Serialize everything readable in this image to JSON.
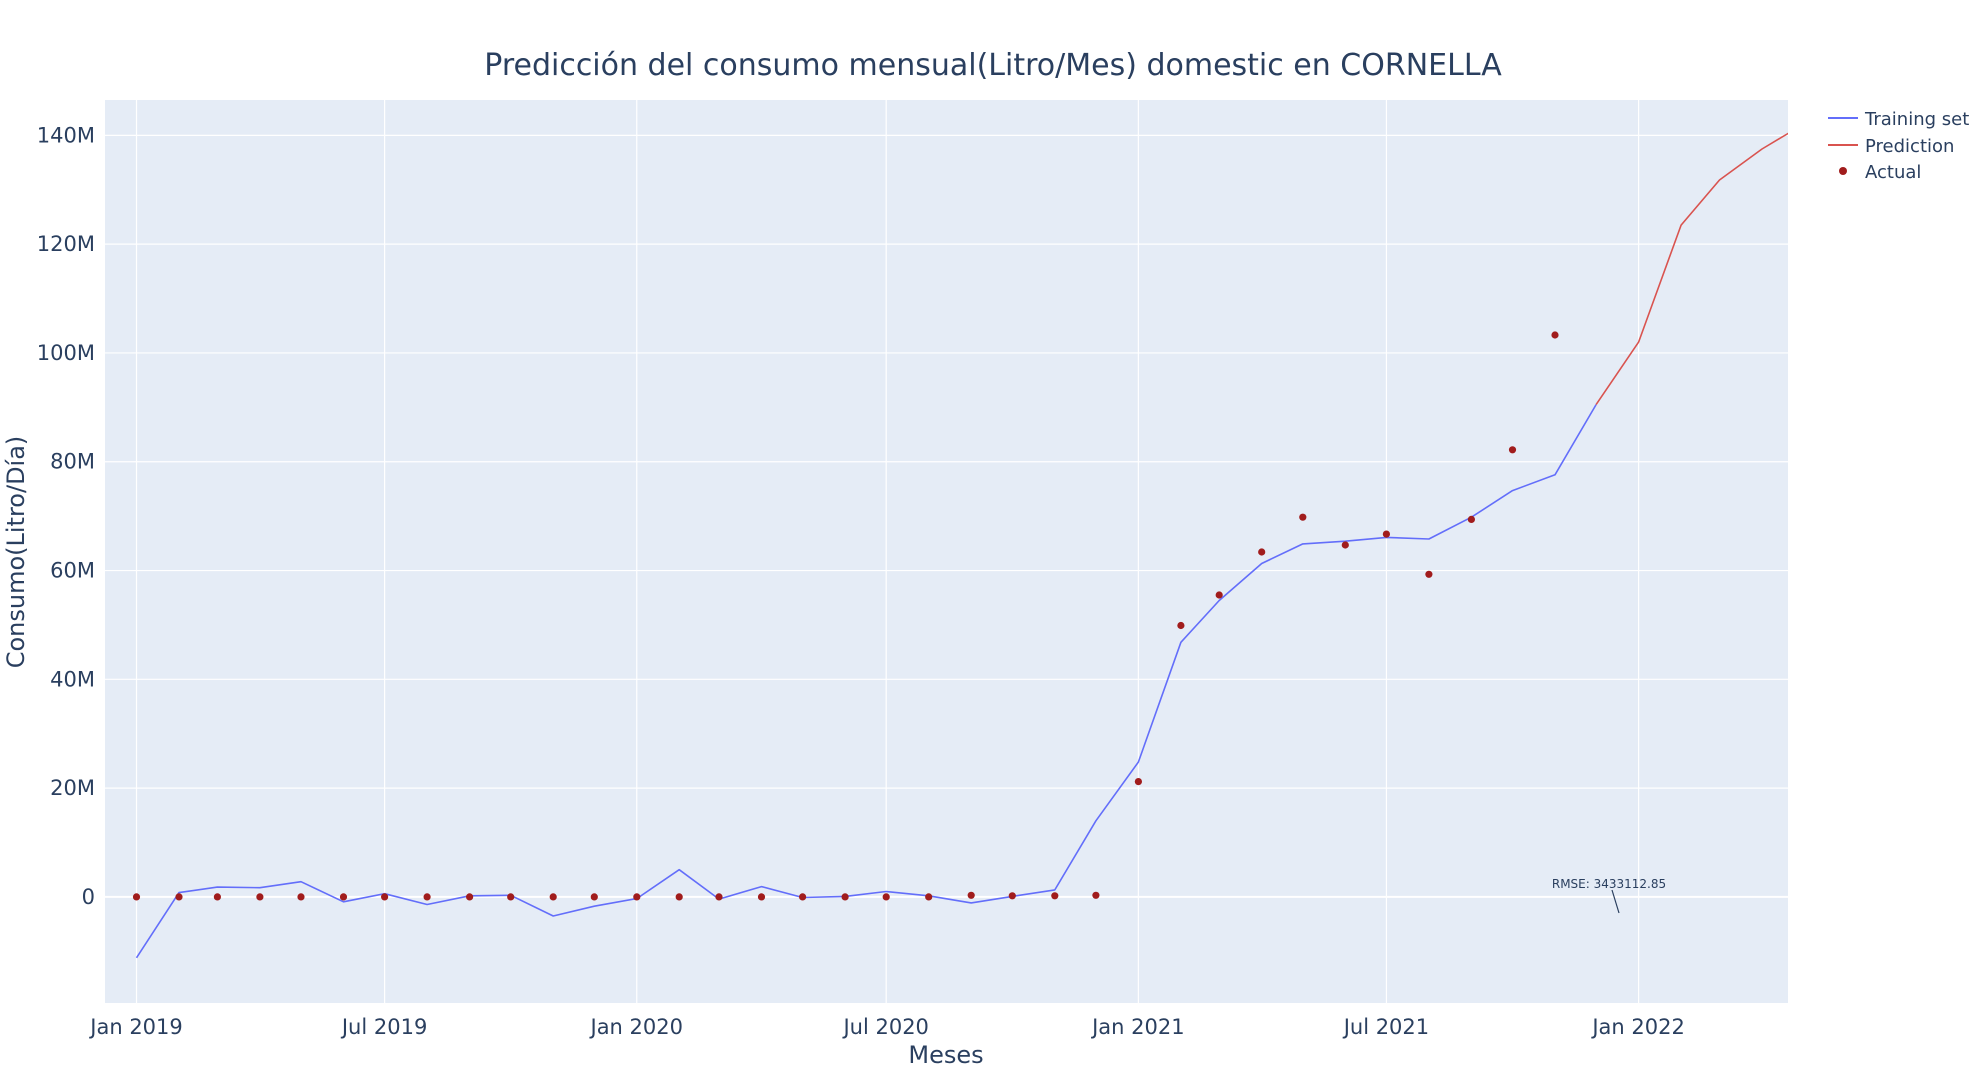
{
  "chart_data": {
    "type": "line",
    "title": "Predicción del consumo mensual(Litro/Mes) domestic en CORNELLA",
    "xlabel": "Meses",
    "ylabel": "Consumo(Litro/Día)",
    "x_ticks": [
      "Jan 2019",
      "Jul 2019",
      "Jan 2020",
      "Jul 2020",
      "Jan 2021",
      "Jul 2021",
      "Jan 2022"
    ],
    "y_ticks": [
      "0",
      "20M",
      "40M",
      "60M",
      "80M",
      "100M",
      "120M",
      "140M"
    ],
    "y_tick_values": [
      0,
      20000000,
      40000000,
      60000000,
      80000000,
      100000000,
      120000000,
      140000000
    ],
    "xlim": [
      "2018-12-09",
      "2022-04-20"
    ],
    "ylim": [
      -19500000,
      146500000
    ],
    "grid": true,
    "legend_position": "top-right",
    "plot_background": "#e5ecf6",
    "annotation": "RMSE: 3433112.85",
    "series": [
      {
        "name": "Training set",
        "mode": "line",
        "color": "#636efa",
        "points": [
          [
            "2019-01-01",
            -11200000
          ],
          [
            "2019-02-01",
            800000
          ],
          [
            "2019-03-01",
            1800000
          ],
          [
            "2019-04-01",
            1700000
          ],
          [
            "2019-05-01",
            2800000
          ],
          [
            "2019-06-01",
            -900000
          ],
          [
            "2019-07-01",
            600000
          ],
          [
            "2019-08-01",
            -1400000
          ],
          [
            "2019-09-01",
            200000
          ],
          [
            "2019-10-01",
            300000
          ],
          [
            "2019-11-01",
            -3500000
          ],
          [
            "2019-12-01",
            -1700000
          ],
          [
            "2020-01-01",
            -300000
          ],
          [
            "2020-02-01",
            5000000
          ],
          [
            "2020-03-01",
            -400000
          ],
          [
            "2020-04-01",
            1900000
          ],
          [
            "2020-05-01",
            -100000
          ],
          [
            "2020-06-01",
            100000
          ],
          [
            "2020-07-01",
            1000000
          ],
          [
            "2020-08-01",
            200000
          ],
          [
            "2020-09-01",
            -1100000
          ],
          [
            "2020-10-01",
            100000
          ],
          [
            "2020-11-01",
            1300000
          ],
          [
            "2020-12-01",
            14000000
          ],
          [
            "2021-01-01",
            24800000
          ],
          [
            "2021-02-01",
            46800000
          ],
          [
            "2021-03-01",
            54500000
          ],
          [
            "2021-04-01",
            61300000
          ],
          [
            "2021-05-01",
            64900000
          ],
          [
            "2021-06-01",
            65400000
          ],
          [
            "2021-07-01",
            66100000
          ],
          [
            "2021-08-01",
            65800000
          ],
          [
            "2021-09-01",
            69800000
          ],
          [
            "2021-10-01",
            74700000
          ],
          [
            "2021-11-01",
            77600000
          ],
          [
            "2021-12-01",
            90500000
          ]
        ]
      },
      {
        "name": "Prediction",
        "mode": "line",
        "color": "#d9534f",
        "points": [
          [
            "2021-12-01",
            90500000
          ],
          [
            "2022-01-01",
            102000000
          ],
          [
            "2022-02-01",
            123500000
          ],
          [
            "2022-03-01",
            131800000
          ],
          [
            "2022-04-01",
            137500000
          ],
          [
            "2022-05-01",
            142000000
          ]
        ]
      },
      {
        "name": "Actual",
        "mode": "markers",
        "color": "#a11c1c",
        "points": [
          [
            "2019-01-01",
            0
          ],
          [
            "2019-02-01",
            0
          ],
          [
            "2019-03-01",
            0
          ],
          [
            "2019-04-01",
            0
          ],
          [
            "2019-05-01",
            0
          ],
          [
            "2019-06-01",
            0
          ],
          [
            "2019-07-01",
            0
          ],
          [
            "2019-08-01",
            0
          ],
          [
            "2019-09-01",
            0
          ],
          [
            "2019-10-01",
            0
          ],
          [
            "2019-11-01",
            0
          ],
          [
            "2019-12-01",
            0
          ],
          [
            "2020-01-01",
            0
          ],
          [
            "2020-02-01",
            0
          ],
          [
            "2020-03-01",
            0
          ],
          [
            "2020-04-01",
            0
          ],
          [
            "2020-05-01",
            0
          ],
          [
            "2020-06-01",
            0
          ],
          [
            "2020-07-01",
            0
          ],
          [
            "2020-08-01",
            0
          ],
          [
            "2020-09-01",
            300000
          ],
          [
            "2020-10-01",
            200000
          ],
          [
            "2020-11-01",
            200000
          ],
          [
            "2020-12-01",
            300000
          ],
          [
            "2021-01-01",
            21200000
          ],
          [
            "2021-02-01",
            49900000
          ],
          [
            "2021-03-01",
            55500000
          ],
          [
            "2021-04-01",
            63400000
          ],
          [
            "2021-05-01",
            69800000
          ],
          [
            "2021-06-01",
            64700000
          ],
          [
            "2021-07-01",
            66700000
          ],
          [
            "2021-08-01",
            59300000
          ],
          [
            "2021-09-01",
            69400000
          ],
          [
            "2021-10-01",
            82200000
          ],
          [
            "2021-11-01",
            103300000
          ]
        ]
      }
    ]
  }
}
